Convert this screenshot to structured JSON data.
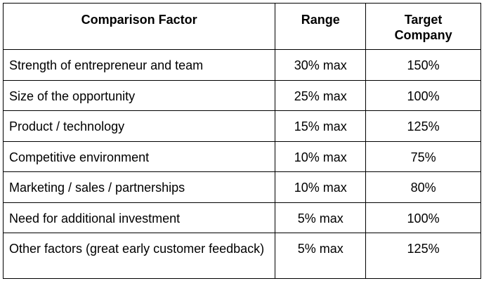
{
  "table": {
    "header": [
      "Comparison Factor",
      "Range",
      "Target Company"
    ],
    "rows": [
      [
        "Strength of entrepreneur and team",
        "30% max",
        "150%"
      ],
      [
        "Size of the opportunity",
        "25% max",
        "100%"
      ],
      [
        "Product / technology",
        "15% max",
        "125%"
      ],
      [
        "Competitive environment",
        "10% max",
        "75%"
      ],
      [
        "Marketing / sales / partnerships",
        "10% max",
        "80%"
      ],
      [
        "Need for additional investment",
        "5% max",
        "100%"
      ],
      [
        "Other factors (great early customer feedback)",
        "5% max",
        "125%"
      ]
    ]
  }
}
